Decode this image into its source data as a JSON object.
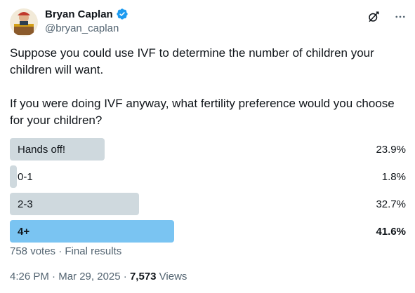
{
  "author": {
    "display_name": "Bryan Caplan",
    "handle": "@bryan_caplan",
    "verified_color": "#1d9bf0"
  },
  "tweet": {
    "paragraphs": [
      "Suppose you could use IVF to determine the number of children your children will want.",
      "If you were doing IVF anyway, what fertility preference would you choose for your children?"
    ]
  },
  "poll": {
    "options": [
      {
        "label": "Hands off!",
        "percent_text": "23.9%",
        "fraction": 0.239,
        "winner": false
      },
      {
        "label": "0-1",
        "percent_text": "1.8%",
        "fraction": 0.018,
        "winner": false
      },
      {
        "label": "2-3",
        "percent_text": "32.7%",
        "fraction": 0.327,
        "winner": false
      },
      {
        "label": "4+",
        "percent_text": "41.6%",
        "fraction": 0.416,
        "winner": true
      }
    ],
    "votes": "758 votes",
    "status": "Final results",
    "separator": "·",
    "bar_color": "#cfd9de",
    "winner_color": "#7ac4f2"
  },
  "footer": {
    "time": "4:26 PM",
    "date": "Mar 29, 2025",
    "separator": "·",
    "views_count": "7,573",
    "views_label": "Views"
  },
  "icons": {
    "grok": "grok-icon",
    "more": "more-icon",
    "verified": "verified-badge-icon"
  }
}
